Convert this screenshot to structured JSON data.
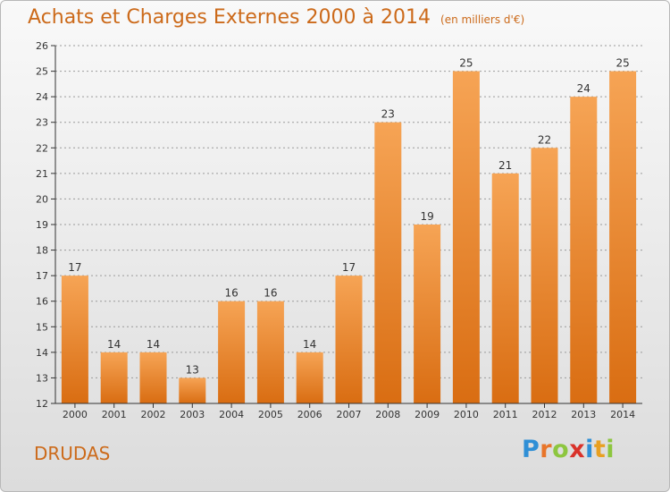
{
  "title": "Achats et Charges Externes 2000 à 2014",
  "unit": "(en milliers d'€)",
  "commune": "DRUDAS",
  "brand": {
    "letters": [
      {
        "ch": "P",
        "color": "#2f8fd6"
      },
      {
        "ch": "r",
        "color": "#e8752a"
      },
      {
        "ch": "o",
        "color": "#8dc63f"
      },
      {
        "ch": "x",
        "color": "#d9322a"
      },
      {
        "ch": "i",
        "color": "#2f8fd6"
      },
      {
        "ch": "t",
        "color": "#e8a021"
      },
      {
        "ch": "i",
        "color": "#8dc63f"
      }
    ]
  },
  "colors": {
    "bar_light": "#f6a455",
    "bar_dark": "#d96d12",
    "text": "#cc6a1a",
    "grid": "#9a9a9a",
    "axis": "#333333"
  },
  "chart_data": {
    "type": "bar",
    "categories": [
      "2000",
      "2001",
      "2002",
      "2003",
      "2004",
      "2005",
      "2006",
      "2007",
      "2008",
      "2009",
      "2010",
      "2011",
      "2012",
      "2013",
      "2014"
    ],
    "values": [
      17,
      14,
      14,
      13,
      16,
      16,
      14,
      17,
      23,
      19,
      25,
      21,
      22,
      24,
      25
    ],
    "ylim": [
      12,
      26
    ],
    "yticks": [
      12,
      13,
      14,
      15,
      16,
      17,
      18,
      19,
      20,
      21,
      22,
      23,
      24,
      25,
      26
    ],
    "grid": true,
    "legend": "none"
  }
}
